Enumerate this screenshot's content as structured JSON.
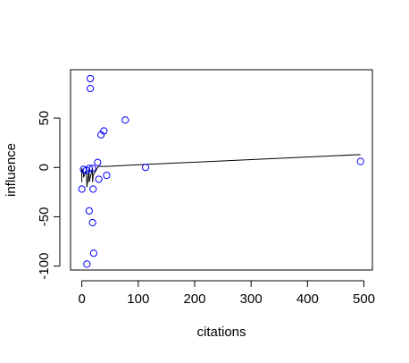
{
  "chart_data": {
    "type": "scatter",
    "xlabel": "citations",
    "ylabel": "influence",
    "xlim": [
      -20,
      515
    ],
    "ylim": [
      -104,
      99
    ],
    "xticks": [
      0,
      100,
      200,
      300,
      400,
      500
    ],
    "yticks": [
      -100,
      -50,
      0,
      50
    ],
    "grid": false,
    "point_color": "#0000ff",
    "line_color": "#000000",
    "points": [
      {
        "x": 15,
        "y": 90
      },
      {
        "x": 15,
        "y": 80
      },
      {
        "x": 77,
        "y": 48
      },
      {
        "x": 39,
        "y": 37
      },
      {
        "x": 34,
        "y": 33
      },
      {
        "x": 28,
        "y": 5
      },
      {
        "x": 494,
        "y": 6
      },
      {
        "x": 113,
        "y": 0
      },
      {
        "x": 3,
        "y": -2
      },
      {
        "x": 8,
        "y": -3
      },
      {
        "x": 13,
        "y": -1
      },
      {
        "x": 19,
        "y": -1
      },
      {
        "x": 44,
        "y": -8
      },
      {
        "x": 30,
        "y": -12
      },
      {
        "x": 0,
        "y": -22
      },
      {
        "x": 20,
        "y": -22
      },
      {
        "x": 13,
        "y": -44
      },
      {
        "x": 19,
        "y": -56
      },
      {
        "x": 21,
        "y": -87
      },
      {
        "x": 9,
        "y": -98
      }
    ],
    "fit_line": [
      {
        "x": 0,
        "y": -15
      },
      {
        "x": 0,
        "y": -1
      },
      {
        "x": 3,
        "y": -7
      },
      {
        "x": 3,
        "y": -10
      },
      {
        "x": 8,
        "y": -3
      },
      {
        "x": 9,
        "y": -20
      },
      {
        "x": 13,
        "y": -1
      },
      {
        "x": 13,
        "y": -15
      },
      {
        "x": 19,
        "y": -1
      },
      {
        "x": 19,
        "y": -15
      },
      {
        "x": 20,
        "y": -8
      },
      {
        "x": 28,
        "y": 0
      },
      {
        "x": 30,
        "y": 1
      },
      {
        "x": 34,
        "y": 1
      },
      {
        "x": 39,
        "y": 1
      },
      {
        "x": 44,
        "y": 1
      },
      {
        "x": 77,
        "y": 2
      },
      {
        "x": 113,
        "y": 3
      },
      {
        "x": 494,
        "y": 13
      }
    ]
  }
}
